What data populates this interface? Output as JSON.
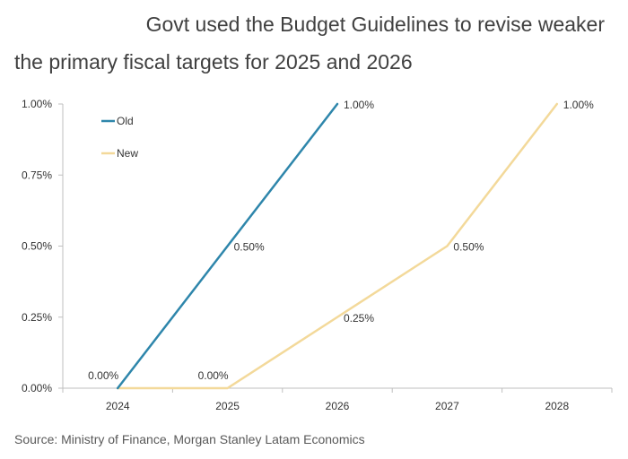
{
  "title_line1": "Govt used the Budget Guidelines to revise weaker",
  "title_line2": "the primary fiscal targets for 2025 and 2026",
  "source": "Source: Ministry of Finance, Morgan Stanley Latam Economics",
  "chart_data": {
    "type": "line",
    "categories": [
      "2024",
      "2025",
      "2026",
      "2027",
      "2028"
    ],
    "yticks": [
      "0.00%",
      "0.25%",
      "0.50%",
      "0.75%",
      "1.00%"
    ],
    "ylim": [
      0,
      1
    ],
    "legend_position": "top-left",
    "series": [
      {
        "name": "Old",
        "color": "#2e86ab",
        "x": [
          2024,
          2025,
          2026
        ],
        "values": [
          0.0,
          0.5,
          1.0
        ],
        "labels": [
          "0.00%",
          "0.50%",
          "1.00%"
        ]
      },
      {
        "name": "New",
        "color": "#f3d99a",
        "x": [
          2024,
          2025,
          2026,
          2027,
          2028
        ],
        "values": [
          0.0,
          0.0,
          0.25,
          0.5,
          1.0
        ],
        "labels": [
          "",
          "0.00%",
          "0.25%",
          "0.50%",
          "1.00%"
        ]
      }
    ]
  }
}
